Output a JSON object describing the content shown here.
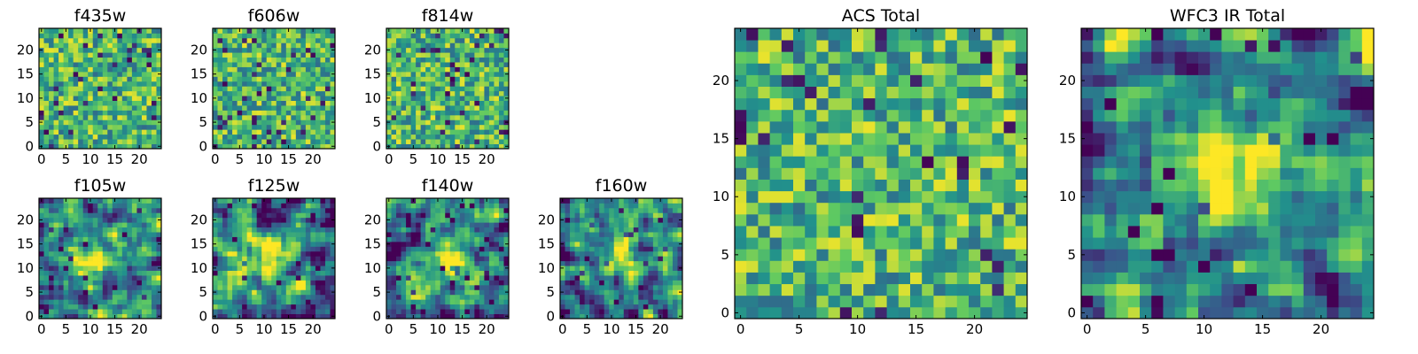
{
  "chart_data": [
    {
      "type": "heatmap",
      "title": "f435w",
      "xticks": [
        0,
        5,
        10,
        15,
        20
      ],
      "yticks": [
        0,
        5,
        10,
        15,
        20
      ],
      "xlim": [
        -0.5,
        24.5
      ],
      "ylim": [
        -0.5,
        24.5
      ],
      "pattern": "noise",
      "seed": 11
    },
    {
      "type": "heatmap",
      "title": "f606w",
      "xticks": [
        0,
        5,
        10,
        15,
        20
      ],
      "yticks": [
        0,
        5,
        10,
        15,
        20
      ],
      "xlim": [
        -0.5,
        24.5
      ],
      "ylim": [
        -0.5,
        24.5
      ],
      "pattern": "noise",
      "seed": 23
    },
    {
      "type": "heatmap",
      "title": "f814w",
      "xticks": [
        0,
        5,
        10,
        15,
        20
      ],
      "yticks": [
        0,
        5,
        10,
        15,
        20
      ],
      "xlim": [
        -0.5,
        24.5
      ],
      "ylim": [
        -0.5,
        24.5
      ],
      "pattern": "noise",
      "seed": 37
    },
    {
      "type": "heatmap",
      "title": "f105w",
      "xticks": [
        0,
        5,
        10,
        15,
        20
      ],
      "yticks": [
        0,
        5,
        10,
        15,
        20
      ],
      "xlim": [
        -0.5,
        24.5
      ],
      "ylim": [
        -0.5,
        24.5
      ],
      "pattern": "source",
      "source_center": [
        11,
        12
      ],
      "seed": 41
    },
    {
      "type": "heatmap",
      "title": "f125w",
      "xticks": [
        0,
        5,
        10,
        15,
        20
      ],
      "yticks": [
        0,
        5,
        10,
        15,
        20
      ],
      "xlim": [
        -0.5,
        24.5
      ],
      "ylim": [
        -0.5,
        24.5
      ],
      "pattern": "source",
      "source_center": [
        11,
        12
      ],
      "seed": 53
    },
    {
      "type": "heatmap",
      "title": "f140w",
      "xticks": [
        0,
        5,
        10,
        15,
        20
      ],
      "yticks": [
        0,
        5,
        10,
        15,
        20
      ],
      "xlim": [
        -0.5,
        24.5
      ],
      "ylim": [
        -0.5,
        24.5
      ],
      "pattern": "source",
      "source_center": [
        12,
        12
      ],
      "seed": 67
    },
    {
      "type": "heatmap",
      "title": "f160w",
      "xticks": [
        0,
        5,
        10,
        15,
        20
      ],
      "yticks": [
        0,
        5,
        10,
        15,
        20
      ],
      "xlim": [
        -0.5,
        24.5
      ],
      "ylim": [
        -0.5,
        24.5
      ],
      "pattern": "source",
      "source_center": [
        12,
        13
      ],
      "seed": 79
    },
    {
      "type": "heatmap",
      "title": "ACS Total",
      "xticks": [
        0,
        5,
        10,
        15,
        20
      ],
      "yticks": [
        0,
        5,
        10,
        15,
        20
      ],
      "xlim": [
        -0.5,
        24.5
      ],
      "ylim": [
        -0.5,
        24.5
      ],
      "pattern": "noise",
      "seed": 97
    },
    {
      "type": "heatmap",
      "title": "WFC3 IR Total",
      "xticks": [
        0,
        5,
        10,
        15,
        20
      ],
      "yticks": [
        0,
        5,
        10,
        15,
        20
      ],
      "xlim": [
        -0.5,
        24.5
      ],
      "ylim": [
        -0.5,
        24.5
      ],
      "pattern": "source",
      "source_center": [
        12,
        12
      ],
      "seed": 113
    }
  ],
  "colormap": {
    "name": "viridis",
    "stops": [
      "#440154",
      "#3b528b",
      "#21918c",
      "#5ec962",
      "#fde725"
    ]
  }
}
